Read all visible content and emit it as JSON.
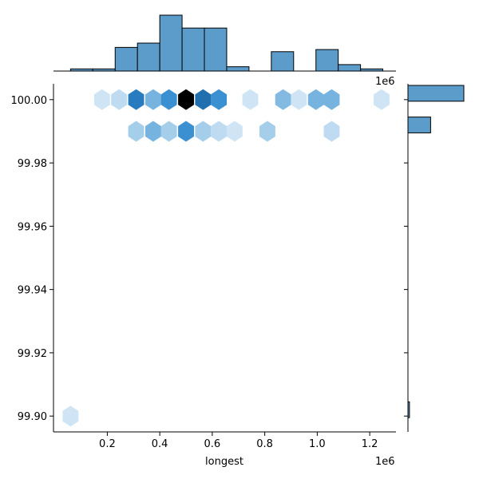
{
  "chart_data": {
    "type": "hexbin-jointplot",
    "xlabel": "longest",
    "ylabel": "",
    "x_offset_label": "1e6",
    "marg_x_offset_label": "1e6",
    "xlim": [
      -0.005,
      1.3
    ],
    "ylim": [
      99.895,
      100.005
    ],
    "x_ticks": [
      0.2,
      0.4,
      0.6,
      0.8,
      1.0,
      1.2
    ],
    "x_tick_labels": [
      "0.2",
      "0.4",
      "0.6",
      "0.8",
      "1.0",
      "1.2"
    ],
    "y_ticks": [
      99.9,
      99.92,
      99.94,
      99.96,
      99.98,
      100.0
    ],
    "y_tick_labels": [
      "99.90",
      "99.92",
      "99.94",
      "99.96",
      "99.98",
      "100.00"
    ],
    "hex_color_max": "#000000",
    "hex_color_min": "#e4f0fa",
    "bar_color": "#5b9ccb",
    "hexbins": [
      {
        "x": 0.06,
        "y": 99.9,
        "density": 0.1
      },
      {
        "x": 0.18,
        "y": 100.0,
        "density": 0.1
      },
      {
        "x": 0.245,
        "y": 100.0,
        "density": 0.18
      },
      {
        "x": 0.31,
        "y": 100.0,
        "density": 0.72
      },
      {
        "x": 0.375,
        "y": 100.0,
        "density": 0.45
      },
      {
        "x": 0.435,
        "y": 100.0,
        "density": 0.62
      },
      {
        "x": 0.5,
        "y": 100.0,
        "density": 1.0
      },
      {
        "x": 0.565,
        "y": 100.0,
        "density": 0.78
      },
      {
        "x": 0.625,
        "y": 100.0,
        "density": 0.62
      },
      {
        "x": 0.745,
        "y": 100.0,
        "density": 0.1
      },
      {
        "x": 0.87,
        "y": 100.0,
        "density": 0.42
      },
      {
        "x": 0.93,
        "y": 100.0,
        "density": 0.1
      },
      {
        "x": 0.995,
        "y": 100.0,
        "density": 0.45
      },
      {
        "x": 1.055,
        "y": 100.0,
        "density": 0.45
      },
      {
        "x": 1.245,
        "y": 100.0,
        "density": 0.1
      },
      {
        "x": 0.31,
        "y": 99.99,
        "density": 0.3
      },
      {
        "x": 0.375,
        "y": 99.99,
        "density": 0.45
      },
      {
        "x": 0.435,
        "y": 99.99,
        "density": 0.3
      },
      {
        "x": 0.5,
        "y": 99.99,
        "density": 0.62
      },
      {
        "x": 0.565,
        "y": 99.99,
        "density": 0.3
      },
      {
        "x": 0.625,
        "y": 99.99,
        "density": 0.18
      },
      {
        "x": 0.685,
        "y": 99.99,
        "density": 0.1
      },
      {
        "x": 0.81,
        "y": 99.99,
        "density": 0.3
      },
      {
        "x": 1.055,
        "y": 99.99,
        "density": 0.18
      }
    ],
    "marginal_x": {
      "bin_edges": [
        0.06,
        0.145,
        0.23,
        0.315,
        0.4,
        0.485,
        0.57,
        0.655,
        0.74,
        0.825,
        0.91,
        0.995,
        1.08,
        1.165,
        1.25
      ],
      "counts": [
        1,
        1,
        11,
        13,
        26,
        20,
        20,
        2,
        0,
        9,
        0,
        10,
        3,
        1
      ]
    },
    "marginal_y": {
      "bins": [
        {
          "y0": 99.9995,
          "y1": 100.0045,
          "count": 37
        },
        {
          "y0": 99.9895,
          "y1": 99.9945,
          "count": 15
        },
        {
          "y0": 99.8995,
          "y1": 99.9045,
          "count": 1
        }
      ],
      "max_count": 37
    }
  }
}
